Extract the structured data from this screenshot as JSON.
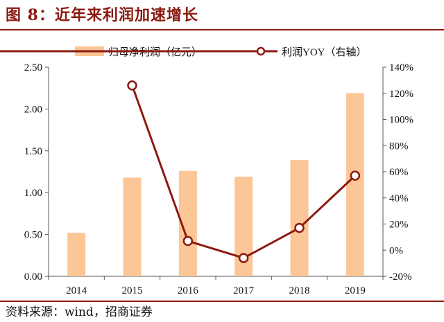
{
  "figure": {
    "title": "图 8：近年来利润加速增长",
    "source": "资料来源：wind，招商证券"
  },
  "colors": {
    "bar": "#fcc696",
    "line": "#8b1a10",
    "marker_fill": "#ffffff",
    "rule": "#8b1a10"
  },
  "chart_data": {
    "type": "bar",
    "categories": [
      "2014",
      "2015",
      "2016",
      "2017",
      "2018",
      "2019"
    ],
    "series": [
      {
        "name": "归母净利润（亿元）",
        "type": "bar",
        "axis": "left",
        "values": [
          0.52,
          1.18,
          1.26,
          1.19,
          1.39,
          2.19
        ]
      },
      {
        "name": "利润YOY（右轴）",
        "type": "line",
        "axis": "right",
        "values": [
          null,
          126,
          7,
          -6,
          17,
          57
        ]
      }
    ],
    "ylim": [
      0,
      2.5
    ],
    "yticks": [
      "0.00",
      "0.50",
      "1.00",
      "1.50",
      "2.00",
      "2.50"
    ],
    "y2lim": [
      -20,
      140
    ],
    "y2ticks": [
      "-20%",
      "0%",
      "20%",
      "40%",
      "60%",
      "80%",
      "100%",
      "120%",
      "140%"
    ],
    "legend_position": "top",
    "grid": false
  }
}
